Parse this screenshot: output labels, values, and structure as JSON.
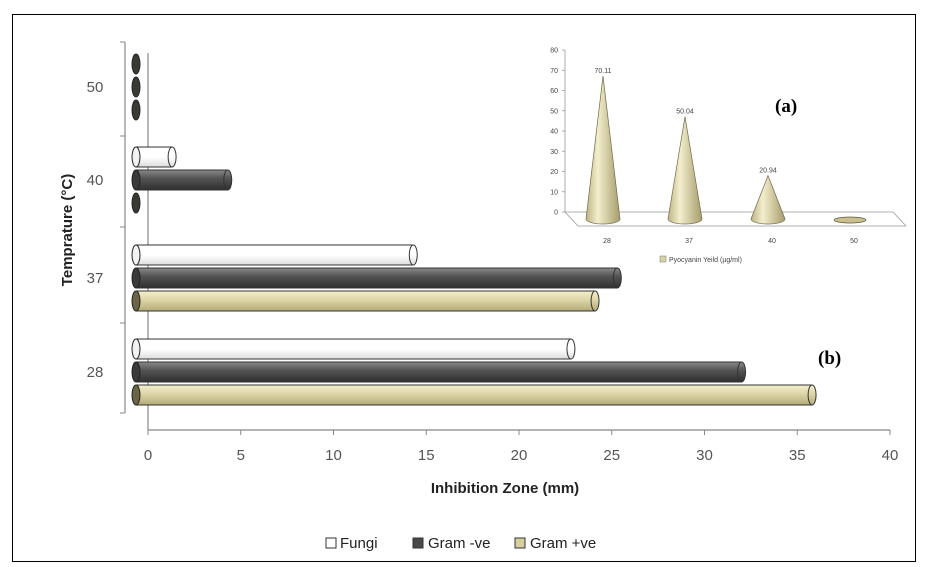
{
  "chart_data": [
    {
      "type": "bar",
      "orientation": "horizontal",
      "categories": [
        "28",
        "37",
        "40",
        "50"
      ],
      "series": [
        {
          "name": "Fungi",
          "values": [
            22.8,
            14.3,
            1.3,
            0
          ],
          "color": "#ffffff"
        },
        {
          "name": "Gram -ve",
          "values": [
            32.0,
            25.3,
            4.3,
            0
          ],
          "color": "#4a4a4a"
        },
        {
          "name": "Gram +ve",
          "values": [
            35.8,
            24.1,
            0,
            0
          ],
          "color": "#d6cfa0"
        }
      ],
      "title": "",
      "xlabel": "Inhibition Zone (mm)",
      "ylabel": "Temprature (°C)",
      "xlim": [
        0,
        40
      ],
      "xticks": [
        "0",
        "5",
        "10",
        "15",
        "20",
        "25",
        "30",
        "35",
        "40"
      ],
      "grid": false,
      "legend_position": "bottom",
      "panel_label": "(b)"
    },
    {
      "type": "bar",
      "style": "3d-cone",
      "categories": [
        "28",
        "37",
        "40",
        "50"
      ],
      "series": [
        {
          "name": "Pyocyanin Yeild (µg/ml)",
          "values": [
            70.11,
            50.04,
            20.94,
            0
          ],
          "color": "#d9d2a3"
        }
      ],
      "data_labels": [
        "70.11",
        "50.04",
        "20.94",
        ""
      ],
      "title": "",
      "xlabel": "",
      "ylabel": "",
      "ylim": [
        0,
        80
      ],
      "yticks": [
        "0",
        "10",
        "20",
        "30",
        "40",
        "50",
        "60",
        "70",
        "80"
      ],
      "grid": false,
      "legend_position": "bottom",
      "panel_label": "(a)"
    }
  ]
}
